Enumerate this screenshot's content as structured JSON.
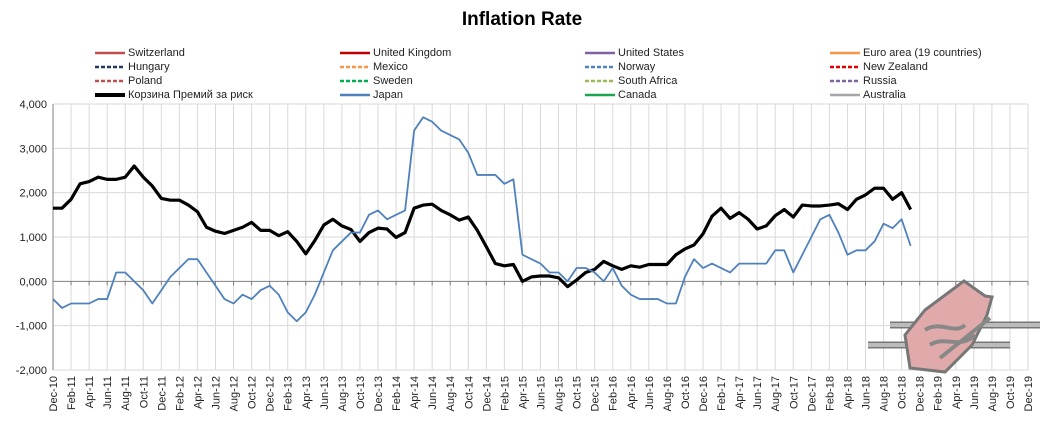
{
  "chart_data": {
    "type": "line",
    "title": "Inflation Rate",
    "xlabel": "",
    "ylabel": "",
    "ylim": [
      -2,
      4
    ],
    "yticks": [
      4,
      3,
      2,
      1,
      0,
      -1,
      -2
    ],
    "ytick_labels": [
      "4,000",
      "3,000",
      "2,000",
      "1,000",
      "0,000",
      "-1,000",
      "-2,000"
    ],
    "grid": true,
    "legend_placement": "top",
    "x_range": [
      "Dec-10",
      "Dec-19"
    ],
    "xtick_labels": [
      "Dec-10",
      "Feb-11",
      "Apr-11",
      "Jun-11",
      "Aug-11",
      "Oct-11",
      "Dec-11",
      "Feb-12",
      "Apr-12",
      "Jun-12",
      "Aug-12",
      "Oct-12",
      "Dec-12",
      "Feb-13",
      "Apr-13",
      "Jun-13",
      "Aug-13",
      "Oct-13",
      "Dec-13",
      "Feb-14",
      "Apr-14",
      "Jun-14",
      "Aug-14",
      "Oct-14",
      "Dec-14",
      "Feb-15",
      "Apr-15",
      "Jun-15",
      "Aug-15",
      "Oct-15",
      "Dec-15",
      "Feb-16",
      "Apr-16",
      "Jun-16",
      "Aug-16",
      "Oct-16",
      "Dec-16",
      "Feb-17",
      "Apr-17",
      "Jun-17",
      "Aug-17",
      "Oct-17",
      "Dec-17",
      "Feb-18",
      "Apr-18",
      "Jun-18",
      "Aug-18",
      "Oct-18",
      "Dec-18",
      "Feb-19",
      "Apr-19",
      "Jun-19",
      "Aug-19",
      "Oct-19",
      "Dec-19"
    ],
    "legend": [
      {
        "name": "Switzerland",
        "color": "#c0504d",
        "dash": false
      },
      {
        "name": "United Kingdom",
        "color": "#c00000",
        "dash": false
      },
      {
        "name": "United States",
        "color": "#8064a2",
        "dash": false
      },
      {
        "name": "Euro area (19 countries)",
        "color": "#f79646",
        "dash": false
      },
      {
        "name": "Hungary",
        "color": "#1f3864",
        "dash": true
      },
      {
        "name": "Mexico",
        "color": "#f79646",
        "dash": true
      },
      {
        "name": "Norway",
        "color": "#4f81bd",
        "dash": true
      },
      {
        "name": "New Zealand",
        "color": "#e00000",
        "dash": true
      },
      {
        "name": "Poland",
        "color": "#c0504d",
        "dash": true
      },
      {
        "name": "Sweden",
        "color": "#00b050",
        "dash": true
      },
      {
        "name": "South Africa",
        "color": "#9bbb59",
        "dash": true
      },
      {
        "name": "Russia",
        "color": "#8064a2",
        "dash": true
      },
      {
        "name": "Корзина Премий за риск",
        "color": "#000000",
        "dash": false,
        "bold": true
      },
      {
        "name": "Japan",
        "color": "#4f81bd",
        "dash": false
      },
      {
        "name": "Canada",
        "color": "#1aa550",
        "dash": false
      },
      {
        "name": "Australia",
        "color": "#a6a6a6",
        "dash": false
      }
    ],
    "x_start": "Dec-10",
    "x_end": "Nov-18",
    "x_step": "month",
    "series": [
      {
        "name": "Корзина Премий за риск",
        "color": "#000000",
        "values": [
          1.65,
          1.65,
          1.85,
          2.2,
          2.25,
          2.35,
          2.3,
          2.3,
          2.35,
          2.6,
          2.35,
          2.15,
          1.87,
          1.83,
          1.83,
          1.72,
          1.57,
          1.22,
          1.13,
          1.08,
          1.15,
          1.22,
          1.33,
          1.15,
          1.15,
          1.03,
          1.12,
          0.9,
          0.62,
          0.92,
          1.27,
          1.4,
          1.25,
          1.17,
          0.9,
          1.1,
          1.2,
          1.18,
          0.99,
          1.1,
          1.65,
          1.72,
          1.74,
          1.6,
          1.5,
          1.38,
          1.45,
          1.15,
          0.78,
          0.4,
          0.35,
          0.38,
          0.0,
          0.1,
          0.12,
          0.12,
          0.08,
          -0.12,
          0.03,
          0.2,
          0.27,
          0.45,
          0.35,
          0.27,
          0.35,
          0.32,
          0.38,
          0.38,
          0.38,
          0.6,
          0.73,
          0.82,
          1.07,
          1.47,
          1.65,
          1.42,
          1.55,
          1.4,
          1.18,
          1.25,
          1.48,
          1.62,
          1.45,
          1.72,
          1.7,
          1.7,
          1.72,
          1.75,
          1.62,
          1.85,
          1.95,
          2.1,
          2.1,
          1.85,
          2.0,
          1.62
        ]
      },
      {
        "name": "Japan",
        "color": "#4f81bd",
        "values": [
          -0.4,
          -0.6,
          -0.5,
          -0.5,
          -0.5,
          -0.4,
          -0.4,
          0.2,
          0.2,
          0.0,
          -0.2,
          -0.5,
          -0.2,
          0.1,
          0.3,
          0.5,
          0.5,
          0.2,
          -0.1,
          -0.4,
          -0.5,
          -0.3,
          -0.4,
          -0.2,
          -0.1,
          -0.3,
          -0.7,
          -0.9,
          -0.7,
          -0.3,
          0.2,
          0.7,
          0.9,
          1.1,
          1.1,
          1.5,
          1.6,
          1.4,
          1.5,
          1.6,
          3.4,
          3.7,
          3.6,
          3.4,
          3.3,
          3.2,
          2.9,
          2.4,
          2.4,
          2.4,
          2.2,
          2.3,
          0.6,
          0.5,
          0.4,
          0.2,
          0.2,
          0.0,
          0.3,
          0.3,
          0.2,
          0.0,
          0.3,
          -0.1,
          -0.3,
          -0.4,
          -0.4,
          -0.4,
          -0.5,
          -0.5,
          0.1,
          0.5,
          0.3,
          0.4,
          0.3,
          0.2,
          0.4,
          0.4,
          0.4,
          0.4,
          0.7,
          0.7,
          0.2,
          0.6,
          1.0,
          1.4,
          1.5,
          1.1,
          0.6,
          0.7,
          0.7,
          0.9,
          1.3,
          1.2,
          1.4,
          0.8
        ]
      }
    ]
  }
}
